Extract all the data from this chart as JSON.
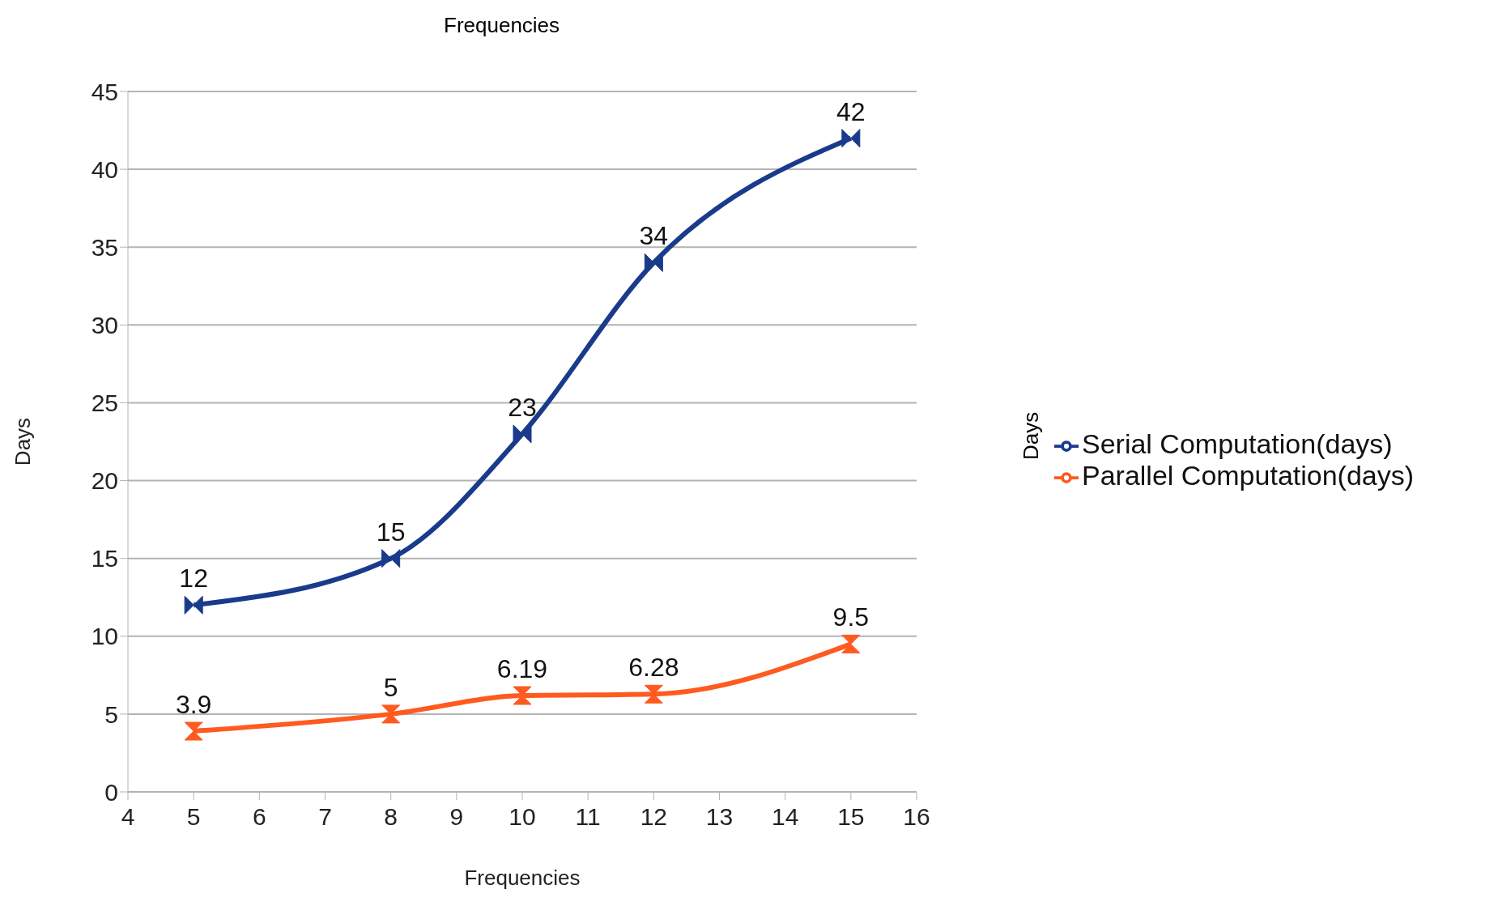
{
  "chart_data": {
    "type": "line",
    "xlabel": "Frequencies",
    "x2label": "Frequencies",
    "ylabel": "Days",
    "y2label": "Days",
    "x": [
      5,
      8,
      10,
      12,
      15
    ],
    "series": [
      {
        "name": "Serial Computation(days)",
        "color": "#1a3a8c",
        "values": [
          12,
          15,
          23,
          34,
          42
        ]
      },
      {
        "name": "Parallel Computation(days)",
        "color": "#ff5a1f",
        "values": [
          3.9,
          5,
          6.19,
          6.28,
          9.5
        ]
      }
    ],
    "xlim": [
      4,
      16
    ],
    "xticks": [
      4,
      5,
      6,
      7,
      8,
      9,
      10,
      11,
      12,
      13,
      14,
      15,
      16
    ],
    "ylim": [
      0,
      45
    ],
    "yticks": [
      0,
      5,
      10,
      15,
      20,
      25,
      30,
      35,
      40,
      45
    ],
    "grid": "y",
    "legend": "right",
    "data_labels": true,
    "marker": "triangle",
    "line_style": "solid"
  }
}
